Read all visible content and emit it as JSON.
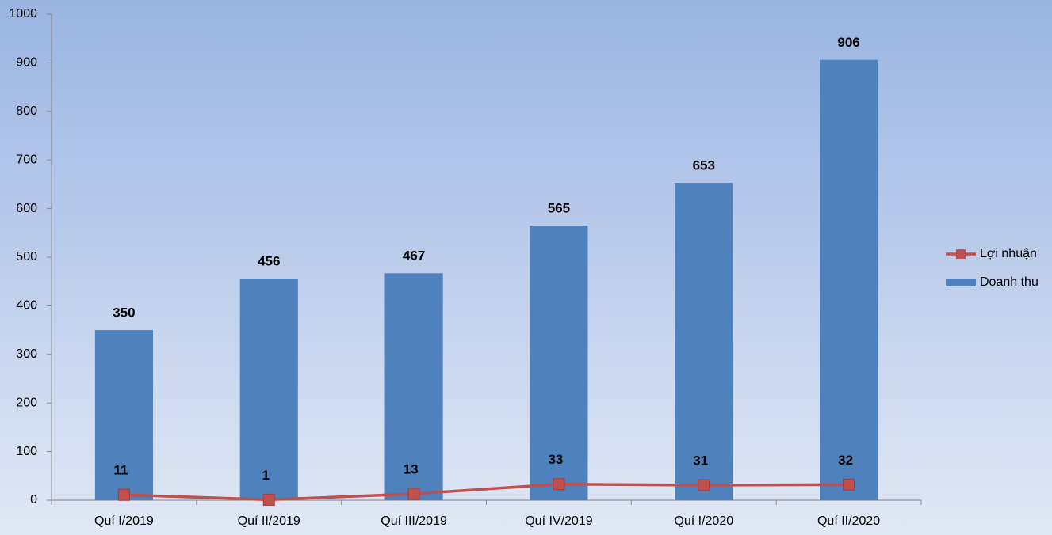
{
  "chart_data": {
    "type": "bar",
    "categories": [
      "Quí I/2019",
      "Quí II/2019",
      "Quí III/2019",
      "Quí IV/2019",
      "Quí I/2020",
      "Quí II/2020"
    ],
    "series": [
      {
        "name": "Lợi nhuận",
        "type": "line",
        "color": "#c0504d",
        "values": [
          11,
          1,
          13,
          33,
          31,
          32
        ]
      },
      {
        "name": "Doanh thu",
        "type": "bar",
        "color": "#4f81bd",
        "values": [
          350,
          456,
          467,
          565,
          653,
          906
        ]
      }
    ],
    "ylim": [
      0,
      1000
    ],
    "yticks": [
      0,
      100,
      200,
      300,
      400,
      500,
      600,
      700,
      800,
      900,
      1000
    ],
    "legend": "right"
  }
}
